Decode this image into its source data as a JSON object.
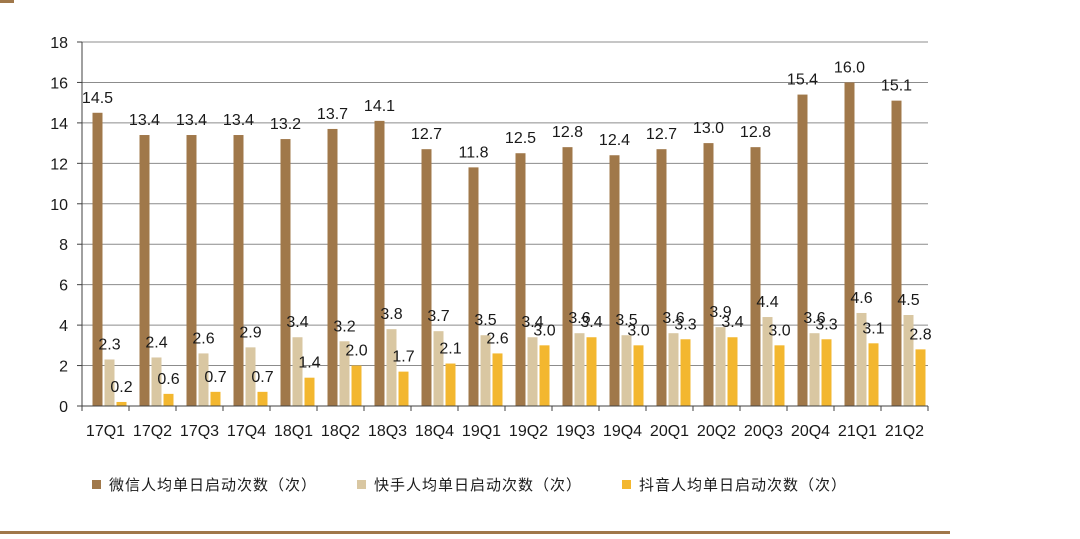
{
  "chart_data": {
    "type": "bar",
    "categories": [
      "17Q1",
      "17Q2",
      "17Q3",
      "17Q4",
      "18Q1",
      "18Q2",
      "18Q3",
      "18Q4",
      "19Q1",
      "19Q2",
      "19Q3",
      "19Q4",
      "20Q1",
      "20Q2",
      "20Q3",
      "20Q4",
      "21Q1",
      "21Q2"
    ],
    "series": [
      {
        "name": "微信人均单日启动次数（次）",
        "color": "#a0784a",
        "values": [
          14.5,
          13.4,
          13.4,
          13.4,
          13.2,
          13.7,
          14.1,
          12.7,
          11.8,
          12.5,
          12.8,
          12.4,
          12.7,
          13.0,
          12.8,
          15.4,
          16.0,
          15.1
        ]
      },
      {
        "name": "快手人均单日启动次数（次）",
        "color": "#d9c7a2",
        "values": [
          2.3,
          2.4,
          2.6,
          2.9,
          3.4,
          3.2,
          3.8,
          3.7,
          3.5,
          3.4,
          3.6,
          3.5,
          3.6,
          3.9,
          4.4,
          3.6,
          4.6,
          4.5
        ]
      },
      {
        "name": "抖音人均单日启动次数（次）",
        "color": "#f3b72f",
        "values": [
          0.2,
          0.6,
          0.7,
          0.7,
          1.4,
          2.0,
          1.7,
          2.1,
          2.6,
          3.0,
          3.4,
          3.0,
          3.3,
          3.4,
          3.0,
          3.3,
          3.1,
          2.8
        ]
      }
    ],
    "ylim": [
      0,
      18
    ],
    "yticks": [
      0,
      2,
      4,
      6,
      8,
      10,
      12,
      14,
      16,
      18
    ],
    "grid": true,
    "legend_position": "bottom",
    "title": "",
    "xlabel": "",
    "ylabel": ""
  },
  "legend": {
    "items": [
      {
        "label": "微信人均单日启动次数（次）",
        "color": "#a0784a"
      },
      {
        "label": "快手人均单日启动次数（次）",
        "color": "#d9c7a2"
      },
      {
        "label": "抖音人均单日启动次数（次）",
        "color": "#f3b72f"
      }
    ]
  }
}
